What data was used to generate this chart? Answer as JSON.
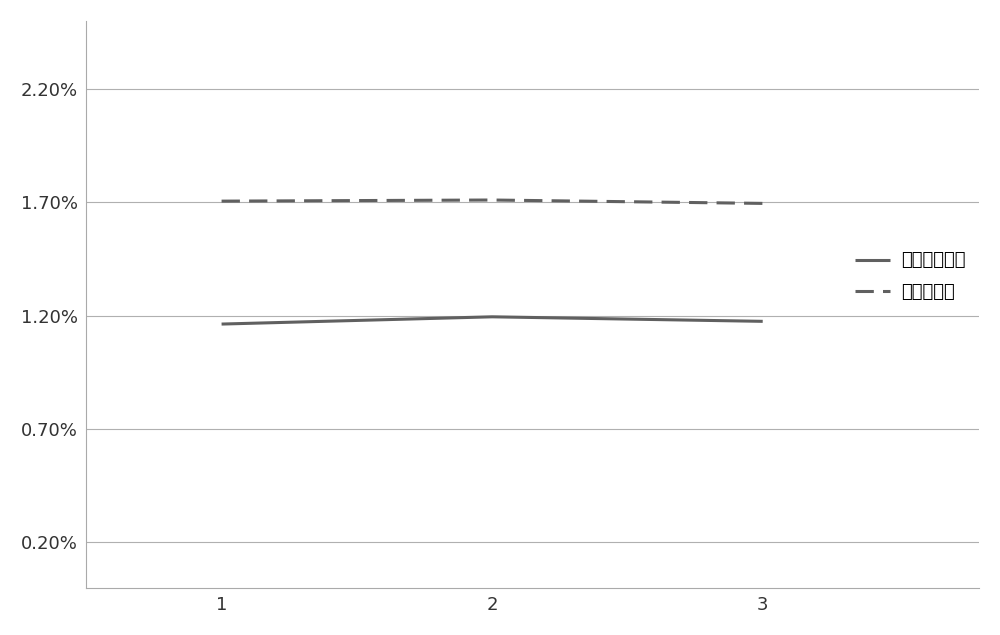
{
  "x": [
    1,
    2,
    3
  ],
  "series1_y": [
    0.01163,
    0.01195,
    0.01175
  ],
  "series2_y": [
    0.01705,
    0.0171,
    0.01695
  ],
  "series1_label": "未打开离子源",
  "series2_label": "打开离子源",
  "series1_color": "#606060",
  "series2_color": "#606060",
  "series1_linestyle": "solid",
  "series2_linestyle": "dashed",
  "series1_linewidth": 2.2,
  "series2_linewidth": 2.2,
  "xlim": [
    0.5,
    3.8
  ],
  "ylim": [
    0.0,
    0.025
  ],
  "yticks": [
    0.002,
    0.007,
    0.012,
    0.017,
    0.022
  ],
  "ytick_labels": [
    "0.20%",
    "0.70%",
    "1.20%",
    "1.70%",
    "2.20%"
  ],
  "xticks": [
    1,
    2,
    3
  ],
  "grid_color": "#b0b0b0",
  "grid_linewidth": 0.8,
  "background_color": "#ffffff",
  "legend_fontsize": 13,
  "tick_fontsize": 13
}
